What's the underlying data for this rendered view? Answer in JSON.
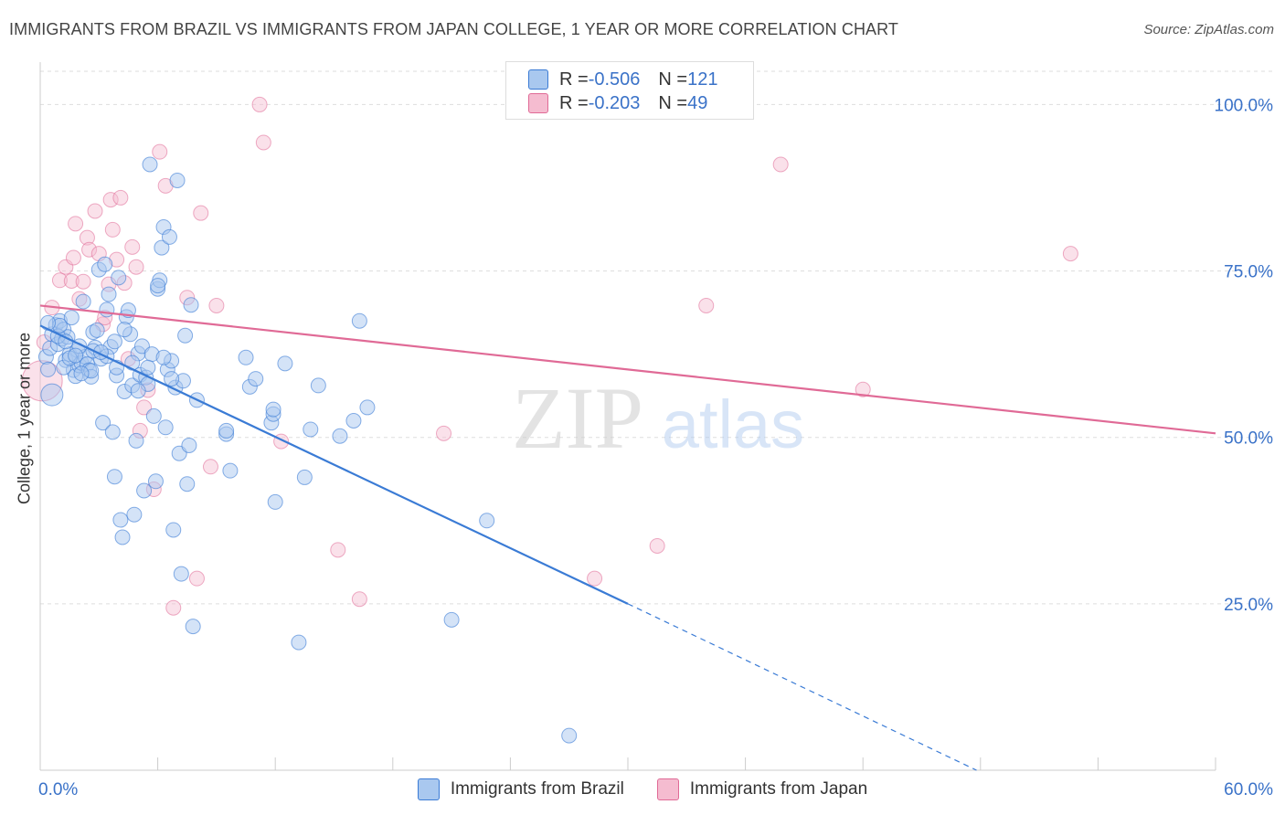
{
  "header": {
    "title": "IMMIGRANTS FROM BRAZIL VS IMMIGRANTS FROM JAPAN COLLEGE, 1 YEAR OR MORE CORRELATION CHART",
    "source": "Source: ZipAtlas.com"
  },
  "watermark": {
    "zip": "ZIP",
    "atlas": "atlas"
  },
  "colors": {
    "brazil": "#3a7bd5",
    "brazil_fill": "#a9c8ef",
    "japan": "#e06a96",
    "japan_fill": "#f5bcd0",
    "grid": "#dddddd",
    "tick_text": "#3a72c8"
  },
  "legend": {
    "rows": [
      {
        "r_label": "R = ",
        "r_value": "-0.506",
        "n_label": "N = ",
        "n_value": "121"
      },
      {
        "r_label": "R = ",
        "r_value": "-0.203",
        "n_label": "N = ",
        "n_value": "49"
      }
    ]
  },
  "bottom_legend": {
    "brazil": "Immigrants from Brazil",
    "japan": "Immigrants from Japan"
  },
  "chart_data": {
    "type": "scatter",
    "title": "IMMIGRANTS FROM BRAZIL VS IMMIGRANTS FROM JAPAN COLLEGE, 1 YEAR OR MORE CORRELATION CHART",
    "xlabel": "",
    "ylabel": "College, 1 year or more",
    "xlim": [
      0,
      60
    ],
    "ylim": [
      0,
      105
    ],
    "x_tick_labels": {
      "min": "0.0%",
      "max": "60.0%"
    },
    "y_ticks": [
      25,
      50,
      75,
      100
    ],
    "y_tick_labels": [
      "25.0%",
      "50.0%",
      "75.0%",
      "100.0%"
    ],
    "grid": true,
    "series": [
      {
        "name": "Immigrants from Brazil",
        "r": -0.506,
        "n": 121,
        "trend": {
          "x0": 0,
          "y0": 66.8,
          "x1": 30,
          "y1": 25.0,
          "dash_x1": 47.8,
          "dash_y1": 0
        },
        "points": [
          [
            0.3,
            62.1
          ],
          [
            0.5,
            63.4
          ],
          [
            0.4,
            60.2
          ],
          [
            0.6,
            65.5
          ],
          [
            0.8,
            66.9
          ],
          [
            0.9,
            64.0
          ],
          [
            1.0,
            67.5
          ],
          [
            1.1,
            64.8
          ],
          [
            1.2,
            66.2
          ],
          [
            1.3,
            61.6
          ],
          [
            1.4,
            65.1
          ],
          [
            1.5,
            62.5
          ],
          [
            1.6,
            68.0
          ],
          [
            1.7,
            60.1
          ],
          [
            1.8,
            59.2
          ],
          [
            1.9,
            63.1
          ],
          [
            2.0,
            60.8
          ],
          [
            2.1,
            61.2
          ],
          [
            2.2,
            70.4
          ],
          [
            2.3,
            62.1
          ],
          [
            2.4,
            61.0
          ],
          [
            2.5,
            60.1
          ],
          [
            2.6,
            59.1
          ],
          [
            2.7,
            65.8
          ],
          [
            2.8,
            63.5
          ],
          [
            2.9,
            66.1
          ],
          [
            3.0,
            75.2
          ],
          [
            3.1,
            61.8
          ],
          [
            3.2,
            52.2
          ],
          [
            3.3,
            76.0
          ],
          [
            3.4,
            69.2
          ],
          [
            3.5,
            71.5
          ],
          [
            3.6,
            63.6
          ],
          [
            3.7,
            50.8
          ],
          [
            3.8,
            44.1
          ],
          [
            3.9,
            59.3
          ],
          [
            4.0,
            74.0
          ],
          [
            4.1,
            37.6
          ],
          [
            4.2,
            35.0
          ],
          [
            4.3,
            56.9
          ],
          [
            4.4,
            68.1
          ],
          [
            4.5,
            69.1
          ],
          [
            4.6,
            65.5
          ],
          [
            4.7,
            57.8
          ],
          [
            4.8,
            38.4
          ],
          [
            4.9,
            49.5
          ],
          [
            5.0,
            62.6
          ],
          [
            5.1,
            59.4
          ],
          [
            5.2,
            63.7
          ],
          [
            5.3,
            42.0
          ],
          [
            5.4,
            59.0
          ],
          [
            5.5,
            58.0
          ],
          [
            5.6,
            91.0
          ],
          [
            5.7,
            62.5
          ],
          [
            5.8,
            53.2
          ],
          [
            5.9,
            43.4
          ],
          [
            6.0,
            72.3
          ],
          [
            6.1,
            73.6
          ],
          [
            6.2,
            78.5
          ],
          [
            6.3,
            81.6
          ],
          [
            6.4,
            51.5
          ],
          [
            6.5,
            60.2
          ],
          [
            6.6,
            80.1
          ],
          [
            6.7,
            61.5
          ],
          [
            6.8,
            36.1
          ],
          [
            6.9,
            57.5
          ],
          [
            7.0,
            88.6
          ],
          [
            7.1,
            47.6
          ],
          [
            7.2,
            29.5
          ],
          [
            7.3,
            58.5
          ],
          [
            7.4,
            65.3
          ],
          [
            7.5,
            43.0
          ],
          [
            7.6,
            48.8
          ],
          [
            7.7,
            69.9
          ],
          [
            7.8,
            21.6
          ],
          [
            8.0,
            55.6
          ],
          [
            9.5,
            50.5
          ],
          [
            9.7,
            45.0
          ],
          [
            10.5,
            62.0
          ],
          [
            10.7,
            57.6
          ],
          [
            11.0,
            58.8
          ],
          [
            11.8,
            52.2
          ],
          [
            11.9,
            53.5
          ],
          [
            12.0,
            40.3
          ],
          [
            12.5,
            61.1
          ],
          [
            13.2,
            19.2
          ],
          [
            13.5,
            44.0
          ],
          [
            13.8,
            51.2
          ],
          [
            14.2,
            57.8
          ],
          [
            15.3,
            50.2
          ],
          [
            16.0,
            52.5
          ],
          [
            16.3,
            67.5
          ],
          [
            16.7,
            54.5
          ],
          [
            21.0,
            22.6
          ],
          [
            22.8,
            37.5
          ],
          [
            27.0,
            5.2
          ],
          [
            1.2,
            60.5
          ],
          [
            2.6,
            60.0
          ],
          [
            4.3,
            66.2
          ],
          [
            0.9,
            65.2
          ],
          [
            1.5,
            61.9
          ],
          [
            3.4,
            62.2
          ],
          [
            5.0,
            57.0
          ],
          [
            6.0,
            72.8
          ],
          [
            2.0,
            63.7
          ],
          [
            9.5,
            51.0
          ],
          [
            11.9,
            54.2
          ],
          [
            0.6,
            56.4
          ],
          [
            1.0,
            66.8
          ],
          [
            1.8,
            62.3
          ],
          [
            2.7,
            63.0
          ],
          [
            3.9,
            60.5
          ],
          [
            4.7,
            61.2
          ],
          [
            5.5,
            60.5
          ],
          [
            6.3,
            62.0
          ],
          [
            6.7,
            58.8
          ],
          [
            0.4,
            67.2
          ],
          [
            1.3,
            64.4
          ],
          [
            2.1,
            59.6
          ],
          [
            3.1,
            62.8
          ],
          [
            3.8,
            64.4
          ]
        ]
      },
      {
        "name": "Immigrants from Japan",
        "r": -0.203,
        "n": 49,
        "trend": {
          "x0": 0,
          "y0": 69.8,
          "x1": 60,
          "y1": 50.6
        },
        "points": [
          [
            0.1,
            58.5
          ],
          [
            0.6,
            69.5
          ],
          [
            1.0,
            73.6
          ],
          [
            1.3,
            75.6
          ],
          [
            1.6,
            73.5
          ],
          [
            1.7,
            77.0
          ],
          [
            1.8,
            82.1
          ],
          [
            2.0,
            70.8
          ],
          [
            2.2,
            73.4
          ],
          [
            2.4,
            80.0
          ],
          [
            2.5,
            78.2
          ],
          [
            2.8,
            84.0
          ],
          [
            3.0,
            77.6
          ],
          [
            3.2,
            67.0
          ],
          [
            3.3,
            68.0
          ],
          [
            3.5,
            73.0
          ],
          [
            3.6,
            85.7
          ],
          [
            3.7,
            81.2
          ],
          [
            3.9,
            76.7
          ],
          [
            4.1,
            86.0
          ],
          [
            4.3,
            73.2
          ],
          [
            4.5,
            61.8
          ],
          [
            4.7,
            78.6
          ],
          [
            4.9,
            75.6
          ],
          [
            5.1,
            51.0
          ],
          [
            5.3,
            54.5
          ],
          [
            5.5,
            57.1
          ],
          [
            5.8,
            42.2
          ],
          [
            6.1,
            92.9
          ],
          [
            6.4,
            87.8
          ],
          [
            6.8,
            24.4
          ],
          [
            7.5,
            71.0
          ],
          [
            8.0,
            28.8
          ],
          [
            8.2,
            83.7
          ],
          [
            8.7,
            45.6
          ],
          [
            9.0,
            69.8
          ],
          [
            11.2,
            100.0
          ],
          [
            11.4,
            94.3
          ],
          [
            12.3,
            49.4
          ],
          [
            15.2,
            33.1
          ],
          [
            16.3,
            25.7
          ],
          [
            20.6,
            50.6
          ],
          [
            28.3,
            28.8
          ],
          [
            31.5,
            33.7
          ],
          [
            34.0,
            69.8
          ],
          [
            37.8,
            91.0
          ],
          [
            42.0,
            57.2
          ],
          [
            52.6,
            77.6
          ],
          [
            0.2,
            64.3
          ]
        ]
      }
    ]
  }
}
